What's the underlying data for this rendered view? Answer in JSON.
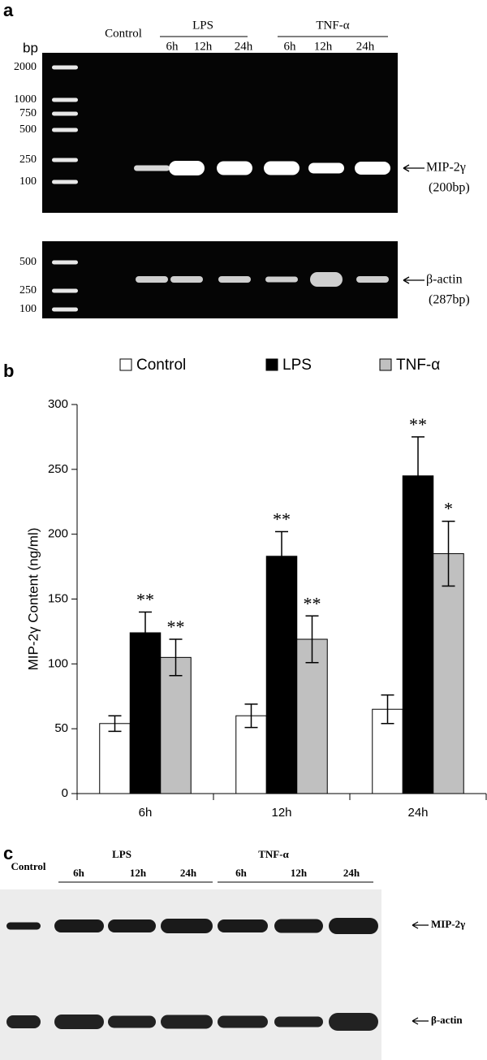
{
  "panel_a": {
    "label": "a",
    "unit": "bp",
    "control": "Control",
    "groups": [
      {
        "name": "LPS",
        "lanes": [
          "6h",
          "12h",
          "24h"
        ]
      },
      {
        "name": "TNF-α",
        "lanes": [
          "6h",
          "12h",
          "24h"
        ]
      }
    ],
    "gel_top": {
      "ladder": [
        2000,
        1000,
        750,
        500,
        250,
        100
      ],
      "target": "MIP-2γ",
      "size": "(200bp)"
    },
    "gel_bottom": {
      "ladder": [
        500,
        250,
        100
      ],
      "target": "β-actin",
      "size": "(287bp)"
    }
  },
  "chart_data": {
    "type": "bar",
    "panel_label": "b",
    "ylabel": "MIP-2γ Content (ng/ml)",
    "categories": [
      "6h",
      "12h",
      "24h"
    ],
    "series": [
      {
        "name": "Control",
        "color": "#ffffff",
        "values": [
          54,
          60,
          65
        ],
        "errors": [
          6,
          9,
          11
        ]
      },
      {
        "name": "LPS",
        "color": "#000000",
        "values": [
          124,
          183,
          245
        ],
        "errors": [
          16,
          19,
          30
        ],
        "significance": [
          "**",
          "**",
          "**"
        ]
      },
      {
        "name": "TNF-α",
        "color": "#c0c0c0",
        "values": [
          105,
          119,
          185
        ],
        "errors": [
          14,
          18,
          25
        ],
        "significance": [
          "**",
          "**",
          "*"
        ]
      }
    ],
    "ylim": [
      0,
      300
    ],
    "yticks": [
      0,
      50,
      100,
      150,
      200,
      250,
      300
    ],
    "grid": false,
    "legend": "top"
  },
  "panel_c": {
    "label": "c",
    "control": "Control",
    "groups": [
      {
        "name": "LPS",
        "lanes": [
          "6h",
          "12h",
          "24h"
        ]
      },
      {
        "name": "TNF-α",
        "lanes": [
          "6h",
          "12h",
          "24h"
        ]
      }
    ],
    "blots": [
      {
        "target": "MIP-2γ"
      },
      {
        "target": "β-actin"
      }
    ]
  }
}
